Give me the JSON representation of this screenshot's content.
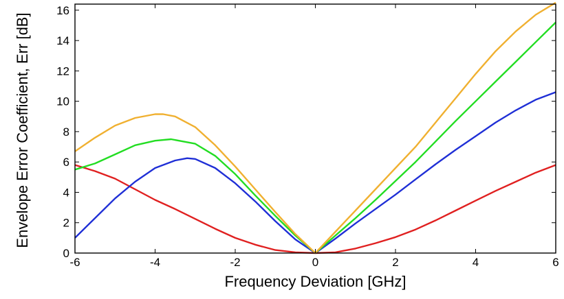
{
  "chart_data": {
    "type": "line",
    "title": "",
    "xlabel": "Frequency Deviation [GHz]",
    "ylabel": "Envelope Error Coefficient, Err [dB]",
    "xlim": [
      -6,
      6
    ],
    "ylim": [
      0,
      16.4
    ],
    "xticks": [
      -6,
      -4,
      -2,
      0,
      2,
      4,
      6
    ],
    "yticks": [
      0,
      2,
      4,
      6,
      8,
      10,
      12,
      14,
      16
    ],
    "grid": false,
    "legend": "none",
    "series": [
      {
        "color": "#e02020",
        "points": [
          [
            -6,
            5.8
          ],
          [
            -5.5,
            5.4
          ],
          [
            -5,
            4.9
          ],
          [
            -4.5,
            4.2
          ],
          [
            -4,
            3.5
          ],
          [
            -3.5,
            2.9
          ],
          [
            -3,
            2.25
          ],
          [
            -2.5,
            1.6
          ],
          [
            -2,
            1.0
          ],
          [
            -1.5,
            0.55
          ],
          [
            -1,
            0.2
          ],
          [
            -0.5,
            0.05
          ],
          [
            0,
            0.0
          ],
          [
            0.5,
            0.05
          ],
          [
            1,
            0.3
          ],
          [
            1.5,
            0.65
          ],
          [
            2,
            1.05
          ],
          [
            2.5,
            1.55
          ],
          [
            3,
            2.15
          ],
          [
            3.5,
            2.8
          ],
          [
            4,
            3.45
          ],
          [
            4.5,
            4.1
          ],
          [
            5,
            4.7
          ],
          [
            5.5,
            5.3
          ],
          [
            6,
            5.8
          ]
        ]
      },
      {
        "color": "#1f2fd6",
        "points": [
          [
            -6,
            1.0
          ],
          [
            -5.5,
            2.3
          ],
          [
            -5,
            3.6
          ],
          [
            -4.5,
            4.7
          ],
          [
            -4,
            5.6
          ],
          [
            -3.5,
            6.1
          ],
          [
            -3.2,
            6.25
          ],
          [
            -3,
            6.2
          ],
          [
            -2.5,
            5.6
          ],
          [
            -2,
            4.6
          ],
          [
            -1.5,
            3.4
          ],
          [
            -1,
            2.1
          ],
          [
            -0.5,
            0.9
          ],
          [
            0,
            0.0
          ],
          [
            0.5,
            0.95
          ],
          [
            1,
            1.95
          ],
          [
            1.5,
            2.9
          ],
          [
            2,
            3.85
          ],
          [
            2.5,
            4.85
          ],
          [
            3,
            5.85
          ],
          [
            3.5,
            6.8
          ],
          [
            4,
            7.7
          ],
          [
            4.5,
            8.6
          ],
          [
            5,
            9.4
          ],
          [
            5.5,
            10.1
          ],
          [
            6,
            10.6
          ]
        ]
      },
      {
        "color": "#22dd22",
        "points": [
          [
            -6,
            5.5
          ],
          [
            -5.5,
            5.9
          ],
          [
            -5,
            6.5
          ],
          [
            -4.5,
            7.1
          ],
          [
            -4,
            7.4
          ],
          [
            -3.6,
            7.5
          ],
          [
            -3,
            7.2
          ],
          [
            -2.5,
            6.4
          ],
          [
            -2,
            5.2
          ],
          [
            -1.5,
            3.8
          ],
          [
            -1,
            2.45
          ],
          [
            -0.5,
            1.15
          ],
          [
            0,
            0.0
          ],
          [
            0.5,
            1.15
          ],
          [
            1,
            2.3
          ],
          [
            1.5,
            3.5
          ],
          [
            2,
            4.75
          ],
          [
            2.5,
            6.0
          ],
          [
            3,
            7.35
          ],
          [
            3.5,
            8.7
          ],
          [
            4,
            10.0
          ],
          [
            4.5,
            11.3
          ],
          [
            5,
            12.6
          ],
          [
            5.5,
            13.9
          ],
          [
            6,
            15.2
          ]
        ]
      },
      {
        "color": "#f0b030",
        "points": [
          [
            -6,
            6.7
          ],
          [
            -5.5,
            7.6
          ],
          [
            -5,
            8.4
          ],
          [
            -4.5,
            8.9
          ],
          [
            -4,
            9.15
          ],
          [
            -3.8,
            9.15
          ],
          [
            -3.5,
            9.0
          ],
          [
            -3,
            8.3
          ],
          [
            -2.5,
            7.1
          ],
          [
            -2,
            5.7
          ],
          [
            -1.5,
            4.2
          ],
          [
            -1,
            2.7
          ],
          [
            -0.5,
            1.25
          ],
          [
            0,
            0.0
          ],
          [
            0.5,
            1.4
          ],
          [
            1,
            2.8
          ],
          [
            1.5,
            4.2
          ],
          [
            2,
            5.6
          ],
          [
            2.5,
            7.0
          ],
          [
            3,
            8.6
          ],
          [
            3.5,
            10.2
          ],
          [
            4,
            11.8
          ],
          [
            4.5,
            13.3
          ],
          [
            5,
            14.6
          ],
          [
            5.5,
            15.7
          ],
          [
            6,
            16.5
          ]
        ]
      }
    ]
  }
}
